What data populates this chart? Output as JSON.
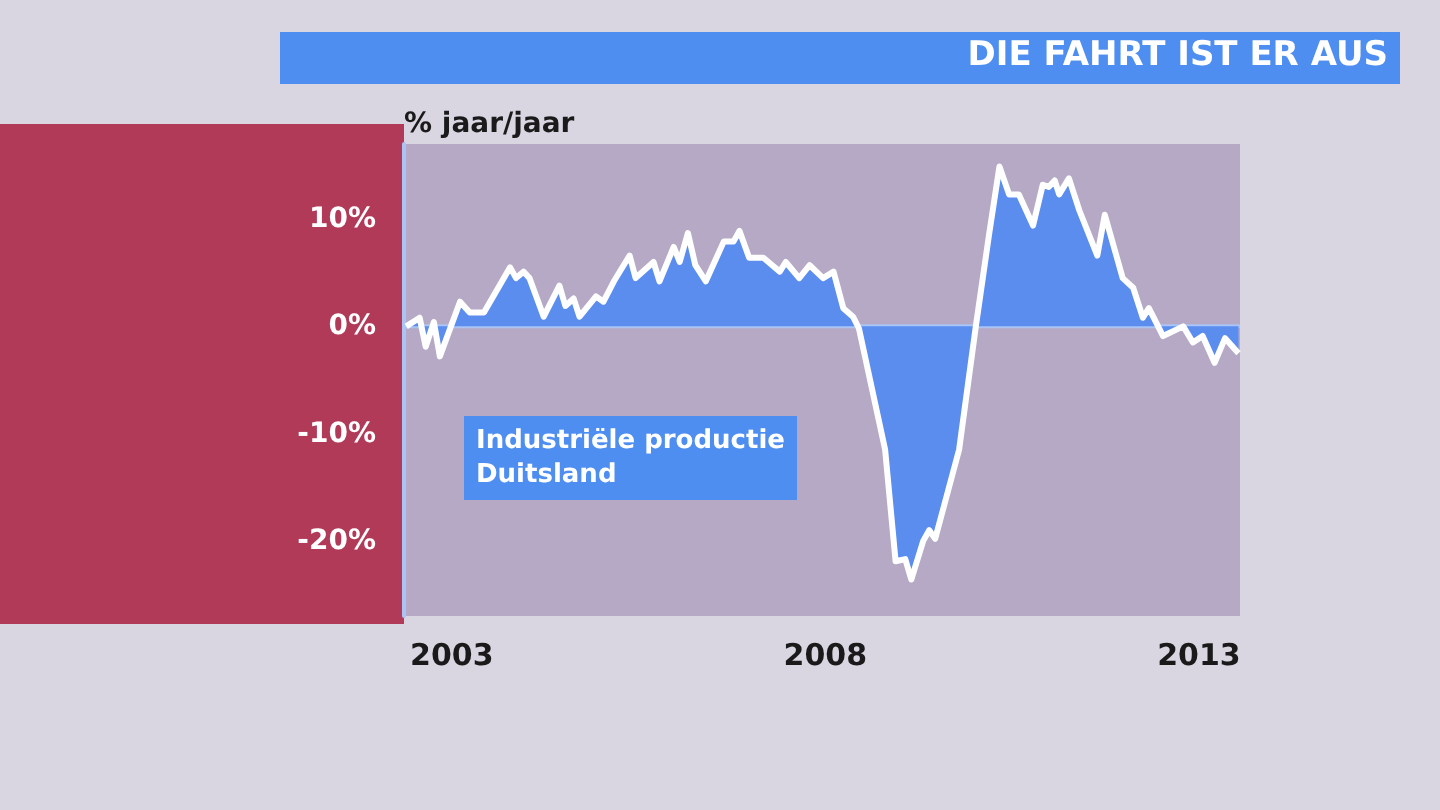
{
  "chart_data": {
    "type": "area",
    "title": "DIE FAHRT IST ER AUS",
    "ylabel": "% jaar/jaar",
    "annotations": [
      "Industriële productie\nDuitsland"
    ],
    "xlim": [
      2002.36,
      2013.55
    ],
    "xticks": [
      2003,
      2008,
      2013
    ],
    "ylim": [
      -27,
      17
    ],
    "yticks": [
      {
        "value": 10,
        "label": "10%"
      },
      {
        "value": 0,
        "label": "0%"
      },
      {
        "value": -10,
        "label": "-10%"
      },
      {
        "value": -20,
        "label": "-20%"
      }
    ],
    "grid": false,
    "marker": "none",
    "line_style": "solid",
    "ref_lines": [
      {
        "axis": "y",
        "value": 0,
        "color": "#a9c4f5"
      }
    ],
    "series": [
      {
        "color": "#5b8def",
        "x": [
          2002.39,
          2002.57,
          2002.65,
          2002.76,
          2002.84,
          2003.11,
          2003.24,
          2003.43,
          2003.78,
          2003.86,
          2003.96,
          2004.04,
          2004.23,
          2004.44,
          2004.52,
          2004.63,
          2004.71,
          2004.93,
          2005.03,
          2005.17,
          2005.38,
          2005.46,
          2005.7,
          2005.78,
          2005.97,
          2006.05,
          2006.16,
          2006.26,
          2006.4,
          2006.64,
          2006.77,
          2006.85,
          2006.98,
          2007.17,
          2007.39,
          2007.47,
          2007.65,
          2007.79,
          2007.97,
          2008.11,
          2008.24,
          2008.37,
          2008.45,
          2008.8,
          2008.94,
          2009.07,
          2009.15,
          2009.31,
          2009.39,
          2009.47,
          2009.79,
          2010.01,
          2010.19,
          2010.33,
          2010.46,
          2010.59,
          2010.78,
          2010.91,
          2010.99,
          2011.07,
          2011.13,
          2011.26,
          2011.4,
          2011.64,
          2011.74,
          2011.98,
          2012.12,
          2012.25,
          2012.33,
          2012.52,
          2012.79,
          2012.92,
          2013.05,
          2013.21,
          2013.35,
          2013.53
        ],
        "values": [
          0,
          0.8,
          -1.9,
          0.4,
          -2.8,
          2.3,
          1.3,
          1.3,
          5.5,
          4.5,
          5.1,
          4.5,
          0.9,
          3.8,
          1.9,
          2.6,
          0.9,
          2.8,
          2.3,
          4.2,
          6.6,
          4.5,
          6,
          4.2,
          7.4,
          6,
          8.7,
          5.7,
          4.2,
          7.9,
          7.9,
          8.9,
          6.4,
          6.4,
          5.1,
          6,
          4.5,
          5.7,
          4.5,
          5.1,
          1.7,
          0.9,
          -0.2,
          -11.5,
          -21.9,
          -21.7,
          -23.6,
          -20,
          -19,
          -19.8,
          -11.5,
          -0.2,
          8.5,
          14.9,
          12.3,
          12.3,
          9.4,
          13.2,
          13,
          13.6,
          12.3,
          13.8,
          10.8,
          6.6,
          10.4,
          4.5,
          3.6,
          0.8,
          1.7,
          -0.9,
          0,
          -1.5,
          -0.9,
          -3.4,
          -1.1,
          -2.5
        ]
      }
    ]
  }
}
